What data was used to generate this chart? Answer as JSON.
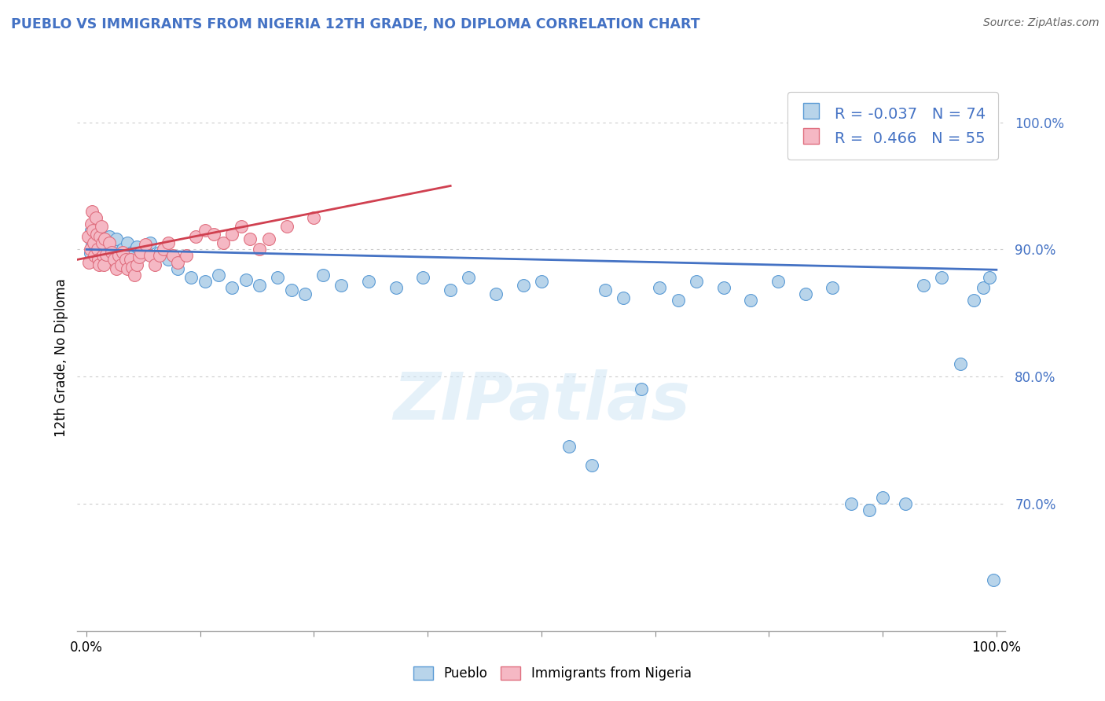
{
  "title": "PUEBLO VS IMMIGRANTS FROM NIGERIA 12TH GRADE, NO DIPLOMA CORRELATION CHART",
  "source": "Source: ZipAtlas.com",
  "ylabel": "12th Grade, No Diploma",
  "legend_entries": [
    "Pueblo",
    "Immigrants from Nigeria"
  ],
  "r_blue": "-0.037",
  "n_blue": "74",
  "r_pink": "0.466",
  "n_pink": "55",
  "blue_color": "#b8d4ea",
  "pink_color": "#f5b8c4",
  "blue_edge_color": "#5b9bd5",
  "pink_edge_color": "#e07080",
  "blue_line_color": "#4472c4",
  "pink_line_color": "#d04050",
  "title_color": "#4472c4",
  "watermark": "ZIPatlas",
  "blue_points": [
    [
      0.003,
      0.91
    ],
    [
      0.004,
      0.897
    ],
    [
      0.005,
      0.915
    ],
    [
      0.006,
      0.905
    ],
    [
      0.007,
      0.9
    ],
    [
      0.008,
      0.912
    ],
    [
      0.009,
      0.908
    ],
    [
      0.01,
      0.895
    ],
    [
      0.011,
      0.902
    ],
    [
      0.012,
      0.91
    ],
    [
      0.013,
      0.898
    ],
    [
      0.014,
      0.905
    ],
    [
      0.015,
      0.895
    ],
    [
      0.016,
      0.908
    ],
    [
      0.018,
      0.902
    ],
    [
      0.02,
      0.895
    ],
    [
      0.022,
      0.905
    ],
    [
      0.025,
      0.91
    ],
    [
      0.028,
      0.898
    ],
    [
      0.03,
      0.903
    ],
    [
      0.033,
      0.908
    ],
    [
      0.036,
      0.895
    ],
    [
      0.04,
      0.9
    ],
    [
      0.045,
      0.905
    ],
    [
      0.05,
      0.898
    ],
    [
      0.055,
      0.902
    ],
    [
      0.06,
      0.895
    ],
    [
      0.07,
      0.905
    ],
    [
      0.08,
      0.898
    ],
    [
      0.09,
      0.892
    ],
    [
      0.1,
      0.885
    ],
    [
      0.115,
      0.878
    ],
    [
      0.13,
      0.875
    ],
    [
      0.145,
      0.88
    ],
    [
      0.16,
      0.87
    ],
    [
      0.175,
      0.876
    ],
    [
      0.19,
      0.872
    ],
    [
      0.21,
      0.878
    ],
    [
      0.225,
      0.868
    ],
    [
      0.24,
      0.865
    ],
    [
      0.26,
      0.88
    ],
    [
      0.28,
      0.872
    ],
    [
      0.31,
      0.875
    ],
    [
      0.34,
      0.87
    ],
    [
      0.37,
      0.878
    ],
    [
      0.4,
      0.868
    ],
    [
      0.42,
      0.878
    ],
    [
      0.45,
      0.865
    ],
    [
      0.48,
      0.872
    ],
    [
      0.5,
      0.875
    ],
    [
      0.53,
      0.745
    ],
    [
      0.555,
      0.73
    ],
    [
      0.57,
      0.868
    ],
    [
      0.59,
      0.862
    ],
    [
      0.61,
      0.79
    ],
    [
      0.63,
      0.87
    ],
    [
      0.65,
      0.86
    ],
    [
      0.67,
      0.875
    ],
    [
      0.7,
      0.87
    ],
    [
      0.73,
      0.86
    ],
    [
      0.76,
      0.875
    ],
    [
      0.79,
      0.865
    ],
    [
      0.82,
      0.87
    ],
    [
      0.84,
      0.7
    ],
    [
      0.86,
      0.695
    ],
    [
      0.875,
      0.705
    ],
    [
      0.9,
      0.7
    ],
    [
      0.92,
      0.872
    ],
    [
      0.94,
      0.878
    ],
    [
      0.96,
      0.81
    ],
    [
      0.975,
      0.86
    ],
    [
      0.985,
      0.87
    ],
    [
      0.992,
      0.878
    ],
    [
      0.997,
      0.64
    ]
  ],
  "pink_points": [
    [
      0.002,
      0.91
    ],
    [
      0.003,
      0.89
    ],
    [
      0.004,
      0.9
    ],
    [
      0.005,
      0.92
    ],
    [
      0.006,
      0.93
    ],
    [
      0.007,
      0.915
    ],
    [
      0.008,
      0.905
    ],
    [
      0.009,
      0.895
    ],
    [
      0.01,
      0.925
    ],
    [
      0.011,
      0.912
    ],
    [
      0.012,
      0.9
    ],
    [
      0.013,
      0.892
    ],
    [
      0.014,
      0.888
    ],
    [
      0.015,
      0.91
    ],
    [
      0.016,
      0.918
    ],
    [
      0.017,
      0.905
    ],
    [
      0.018,
      0.895
    ],
    [
      0.019,
      0.888
    ],
    [
      0.02,
      0.908
    ],
    [
      0.022,
      0.896
    ],
    [
      0.025,
      0.905
    ],
    [
      0.028,
      0.898
    ],
    [
      0.03,
      0.892
    ],
    [
      0.033,
      0.885
    ],
    [
      0.035,
      0.895
    ],
    [
      0.038,
      0.888
    ],
    [
      0.04,
      0.898
    ],
    [
      0.043,
      0.892
    ],
    [
      0.045,
      0.885
    ],
    [
      0.048,
      0.892
    ],
    [
      0.05,
      0.886
    ],
    [
      0.053,
      0.88
    ],
    [
      0.055,
      0.888
    ],
    [
      0.058,
      0.894
    ],
    [
      0.06,
      0.898
    ],
    [
      0.065,
      0.904
    ],
    [
      0.07,
      0.895
    ],
    [
      0.075,
      0.888
    ],
    [
      0.08,
      0.895
    ],
    [
      0.085,
      0.9
    ],
    [
      0.09,
      0.905
    ],
    [
      0.095,
      0.895
    ],
    [
      0.1,
      0.89
    ],
    [
      0.11,
      0.895
    ],
    [
      0.12,
      0.91
    ],
    [
      0.13,
      0.915
    ],
    [
      0.14,
      0.912
    ],
    [
      0.15,
      0.905
    ],
    [
      0.16,
      0.912
    ],
    [
      0.17,
      0.918
    ],
    [
      0.18,
      0.908
    ],
    [
      0.19,
      0.9
    ],
    [
      0.2,
      0.908
    ],
    [
      0.22,
      0.918
    ],
    [
      0.25,
      0.925
    ]
  ],
  "xlim": [
    -0.01,
    1.01
  ],
  "ylim": [
    0.6,
    1.03
  ],
  "yticks": [
    0.7,
    0.8,
    0.9,
    1.0
  ],
  "xtick_positions": [
    0.0,
    0.125,
    0.25,
    0.375,
    0.5,
    0.625,
    0.75,
    0.875,
    1.0
  ],
  "blue_trendline": [
    [
      0.0,
      0.9
    ],
    [
      1.0,
      0.884
    ]
  ],
  "pink_trendline": [
    [
      -0.01,
      0.892
    ],
    [
      0.4,
      0.95
    ]
  ]
}
